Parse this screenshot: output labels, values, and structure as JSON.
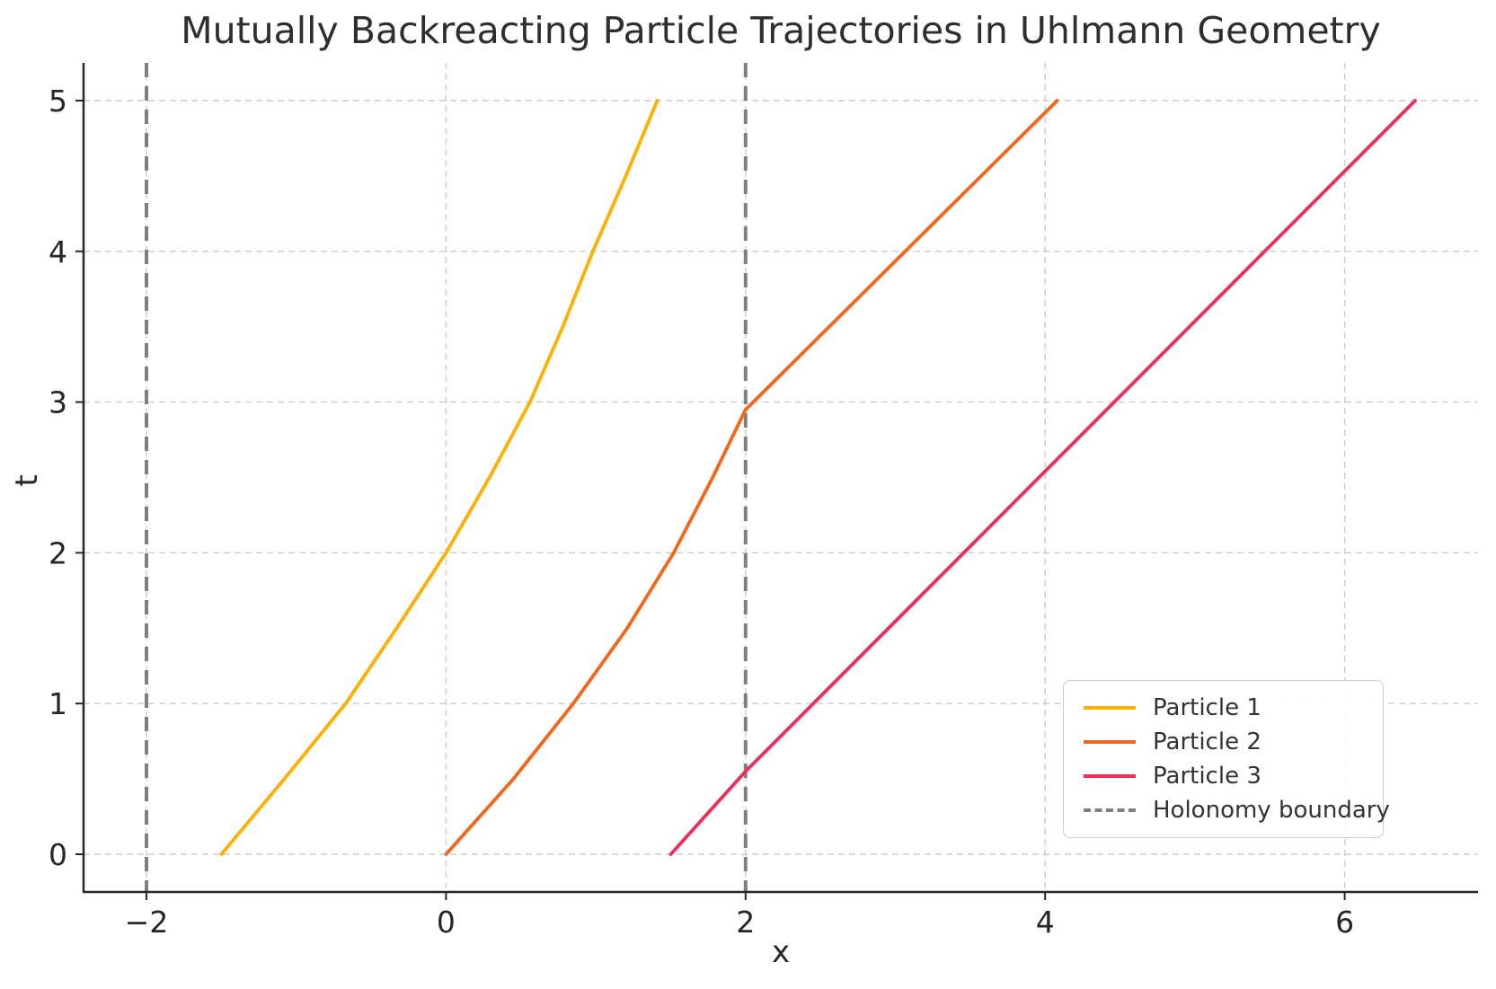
{
  "chart_data": {
    "type": "line",
    "title": "Mutually Backreacting Particle Trajectories in Uhlmann Geometry",
    "xlabel": "x",
    "ylabel": "t",
    "xlim": [
      -2.42,
      6.89
    ],
    "ylim": [
      -0.25,
      5.25
    ],
    "xticks": {
      "values": [
        -2,
        0,
        2,
        4,
        6
      ],
      "labels": [
        "−2",
        "0",
        "2",
        "4",
        "6"
      ]
    },
    "yticks": {
      "values": [
        0,
        1,
        2,
        3,
        4,
        5
      ],
      "labels": [
        "0",
        "1",
        "2",
        "3",
        "4",
        "5"
      ]
    },
    "grid": true,
    "grid_style": "dashed",
    "legend_position": "lower right",
    "series": [
      {
        "name": "Particle 1",
        "color": "#FFB000",
        "style": "solid",
        "points": [
          [
            -1.5,
            0.0
          ],
          [
            -1.08,
            0.5
          ],
          [
            -0.67,
            1.0
          ],
          [
            -0.33,
            1.5
          ],
          [
            0.0,
            2.0
          ],
          [
            0.29,
            2.5
          ],
          [
            0.56,
            3.0
          ],
          [
            0.78,
            3.5
          ],
          [
            0.98,
            4.0
          ],
          [
            1.2,
            4.5
          ],
          [
            1.41,
            5.0
          ]
        ]
      },
      {
        "name": "Particle 2",
        "color": "#F4661B",
        "style": "solid",
        "points": [
          [
            0.0,
            0.0
          ],
          [
            0.45,
            0.5
          ],
          [
            0.85,
            1.0
          ],
          [
            1.21,
            1.5
          ],
          [
            1.52,
            2.0
          ],
          [
            1.78,
            2.5
          ],
          [
            2.0,
            2.95
          ],
          [
            4.08,
            5.0
          ]
        ]
      },
      {
        "name": "Particle 3",
        "color": "#EF2D56",
        "style": "solid",
        "points": [
          [
            1.5,
            0.0
          ],
          [
            2.0,
            0.55
          ],
          [
            6.47,
            5.0
          ]
        ]
      }
    ],
    "boundary": {
      "label": "Holonomy boundary",
      "color": "#7f7f7f",
      "style": "dashed",
      "x_values": [
        -2,
        2
      ]
    },
    "colors": {
      "grid": "#cccccc",
      "spine": "#262626",
      "tick_text": "#262626"
    }
  }
}
